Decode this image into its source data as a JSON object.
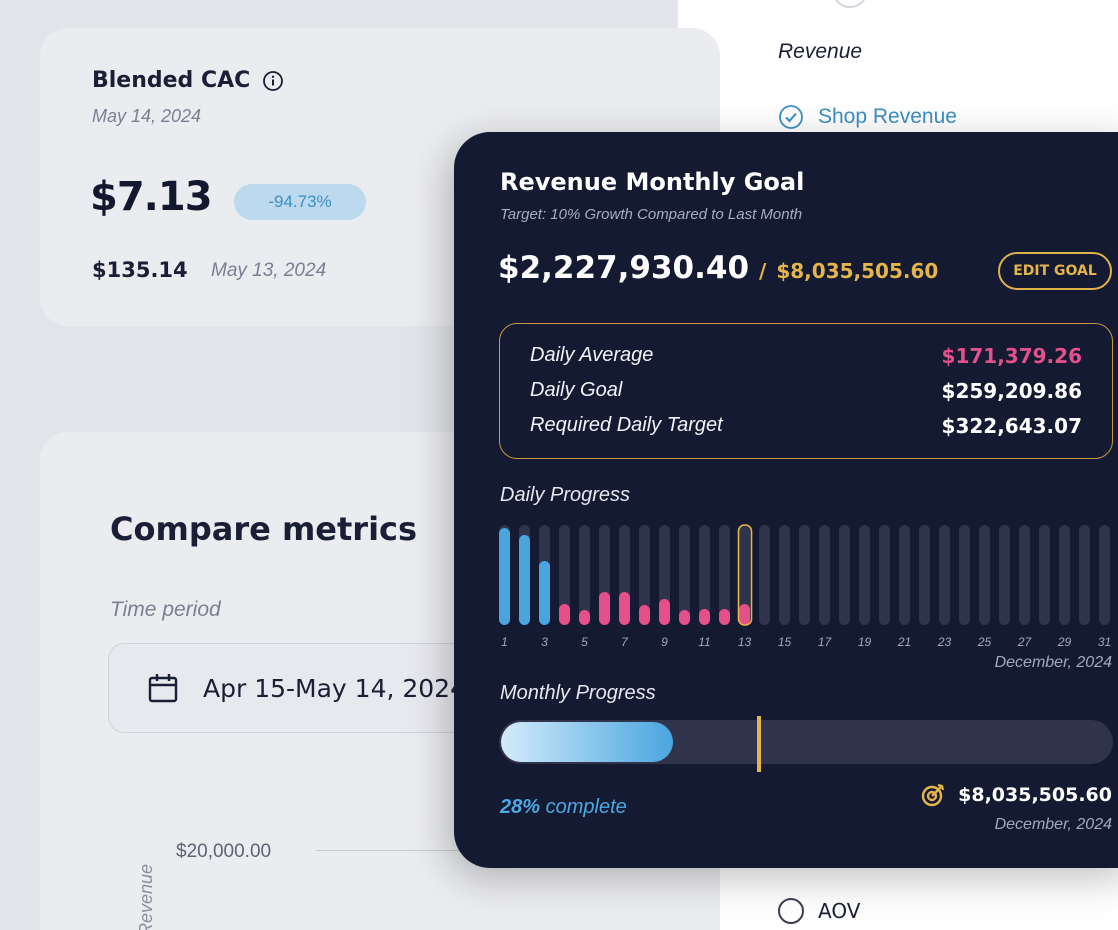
{
  "cac_card": {
    "title": "Blended CAC",
    "date": "May 14, 2024",
    "value": "$7.13",
    "change_badge": "-94.73%",
    "previous_value": "$135.14",
    "previous_date": "May 13, 2024"
  },
  "compare_card": {
    "title": "Compare metrics",
    "time_period_label": "Time period",
    "date_range": "Apr 15-May 14, 2024",
    "y_tick": "$20,000.00",
    "y_axis_label": "Revenue"
  },
  "right_panel": {
    "heading": "Revenue",
    "shop_revenue": "Shop Revenue",
    "aov": "AOV"
  },
  "goal_panel": {
    "title": "Revenue Monthly Goal",
    "subtitle": "Target: 10% Growth Compared to Last Month",
    "current": "$2,227,930.40",
    "separator": "/",
    "target": "$8,035,505.60",
    "edit_button": "EDIT GOAL",
    "stats": [
      {
        "label": "Daily Average",
        "value": "$171,379.26",
        "color": "#e4508a"
      },
      {
        "label": "Daily Goal",
        "value": "$259,209.86",
        "color": "#ffffff"
      },
      {
        "label": "Required Daily Target",
        "value": "$322,643.07",
        "color": "#ffffff"
      }
    ],
    "daily_progress_label": "Daily Progress",
    "daily_month": "December, 2024",
    "monthly_progress_label": "Monthly Progress",
    "progress_percent": 28,
    "target_marker_percent": 42,
    "complete_percent_text": "28%",
    "complete_text": "complete",
    "final_amount": "$8,035,505.60",
    "final_date": "December, 2024"
  },
  "chart_data": {
    "type": "bar",
    "title": "Daily Progress",
    "xlabel": "December, 2024",
    "categories": [
      1,
      2,
      3,
      4,
      5,
      6,
      7,
      8,
      9,
      10,
      11,
      12,
      13,
      14,
      15,
      16,
      17,
      18,
      19,
      20,
      21,
      22,
      23,
      24,
      25,
      26,
      27,
      28,
      29,
      30,
      31
    ],
    "tick_labels": [
      "1",
      "3",
      "5",
      "7",
      "9",
      "11",
      "13",
      "15",
      "17",
      "19",
      "21",
      "23",
      "25",
      "27",
      "29",
      "31"
    ],
    "values": [
      0.97,
      0.9,
      0.64,
      0.21,
      0.15,
      0.33,
      0.33,
      0.2,
      0.26,
      0.15,
      0.16,
      0.16,
      0.21,
      0,
      0,
      0,
      0,
      0,
      0,
      0,
      0,
      0,
      0,
      0,
      0,
      0,
      0,
      0,
      0,
      0,
      0
    ],
    "value_unit": "fraction of daily goal scale",
    "highlight_day": 13,
    "colors": {
      "above_goal": "#4aa5df",
      "below_goal": "#e4508a",
      "empty": "#2f334c",
      "highlight": "#e5b54a"
    }
  }
}
